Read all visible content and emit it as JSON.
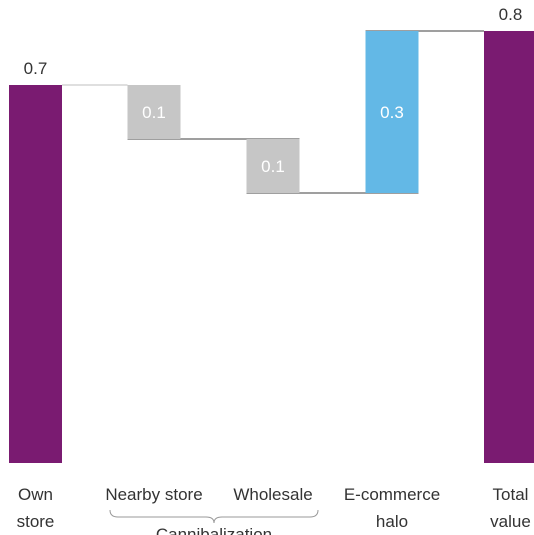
{
  "chart_data": {
    "type": "waterfall",
    "categories": [
      {
        "lines": [
          "Own",
          "store"
        ]
      },
      {
        "lines": [
          "Nearby store"
        ]
      },
      {
        "lines": [
          "Wholesale"
        ]
      },
      {
        "lines": [
          "E-commerce",
          "halo"
        ]
      },
      {
        "lines": [
          "Total",
          "value"
        ]
      }
    ],
    "steps": [
      {
        "kind": "total",
        "value": 0.7,
        "label": "0.7"
      },
      {
        "kind": "decrease",
        "value": 0.1,
        "label": "0.1"
      },
      {
        "kind": "decrease",
        "value": 0.1,
        "label": "0.1"
      },
      {
        "kind": "increase",
        "value": 0.3,
        "label": "0.3"
      },
      {
        "kind": "total",
        "value": 0.8,
        "label": "0.8"
      }
    ],
    "group": {
      "label": "Cannibalization",
      "spans": [
        1,
        2
      ]
    },
    "ylim": [
      0,
      0.8
    ],
    "grid": false,
    "colors": {
      "total": "#7a1b71",
      "decrease": "#c6c6c6",
      "increase": "#63b8e6",
      "connector": "#666666",
      "connector_light": "#cccccc",
      "text": "#333333",
      "inside_label": "#ffffff"
    }
  }
}
